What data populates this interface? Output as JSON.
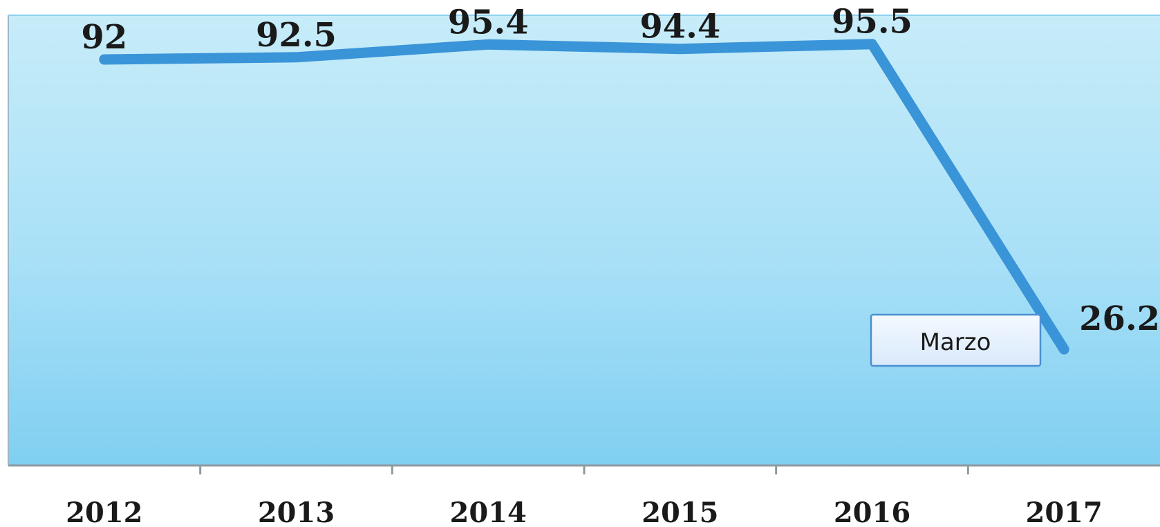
{
  "chart_data": {
    "type": "line",
    "x": [
      "2012",
      "2013",
      "2014",
      "2015",
      "2016",
      "2017"
    ],
    "values": [
      92,
      92.5,
      95.4,
      94.4,
      95.5,
      26.2
    ],
    "data_labels": [
      "92",
      "92.5",
      "95.4",
      "94.4",
      "95.5",
      "26.2"
    ],
    "annotation": "Marzo",
    "annotation_target": "2017",
    "ylim": [
      0,
      100
    ],
    "grid": false,
    "legend": "none",
    "line_color": "#3a94d8",
    "background_top": "#c7ecf9",
    "background_bottom": "#7fd0f2"
  }
}
